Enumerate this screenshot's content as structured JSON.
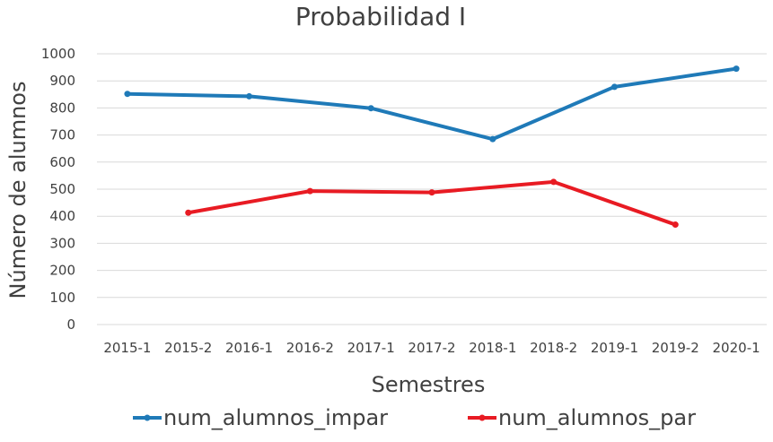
{
  "chart_data": {
    "type": "line",
    "title": "Probabilidad I",
    "xlabel": "Semestres",
    "ylabel": "Número de alumnos",
    "categories": [
      "2015-1",
      "2015-2",
      "2016-1",
      "2016-2",
      "2017-1",
      "2017-2",
      "2018-1",
      "2018-2",
      "2019-1",
      "2019-2",
      "2020-1"
    ],
    "ylim": [
      0,
      1000
    ],
    "yticks": [
      "0",
      "100",
      "200",
      "300",
      "400",
      "500",
      "600",
      "700",
      "800",
      "900",
      "1000"
    ],
    "grid": true,
    "legend_position": "bottom",
    "series": [
      {
        "name": "num_alumnos_impar",
        "color": "#1f7ab8",
        "points": [
          {
            "category": "2015-1",
            "value": 852
          },
          {
            "category": "2016-1",
            "value": 843
          },
          {
            "category": "2017-1",
            "value": 799
          },
          {
            "category": "2018-1",
            "value": 685
          },
          {
            "category": "2019-1",
            "value": 878
          },
          {
            "category": "2020-1",
            "value": 945
          }
        ]
      },
      {
        "name": "num_alumnos_par",
        "color": "#e81b23",
        "points": [
          {
            "category": "2015-2",
            "value": 413
          },
          {
            "category": "2016-2",
            "value": 493
          },
          {
            "category": "2017-2",
            "value": 488
          },
          {
            "category": "2018-2",
            "value": 527
          },
          {
            "category": "2019-2",
            "value": 369
          }
        ]
      }
    ]
  }
}
